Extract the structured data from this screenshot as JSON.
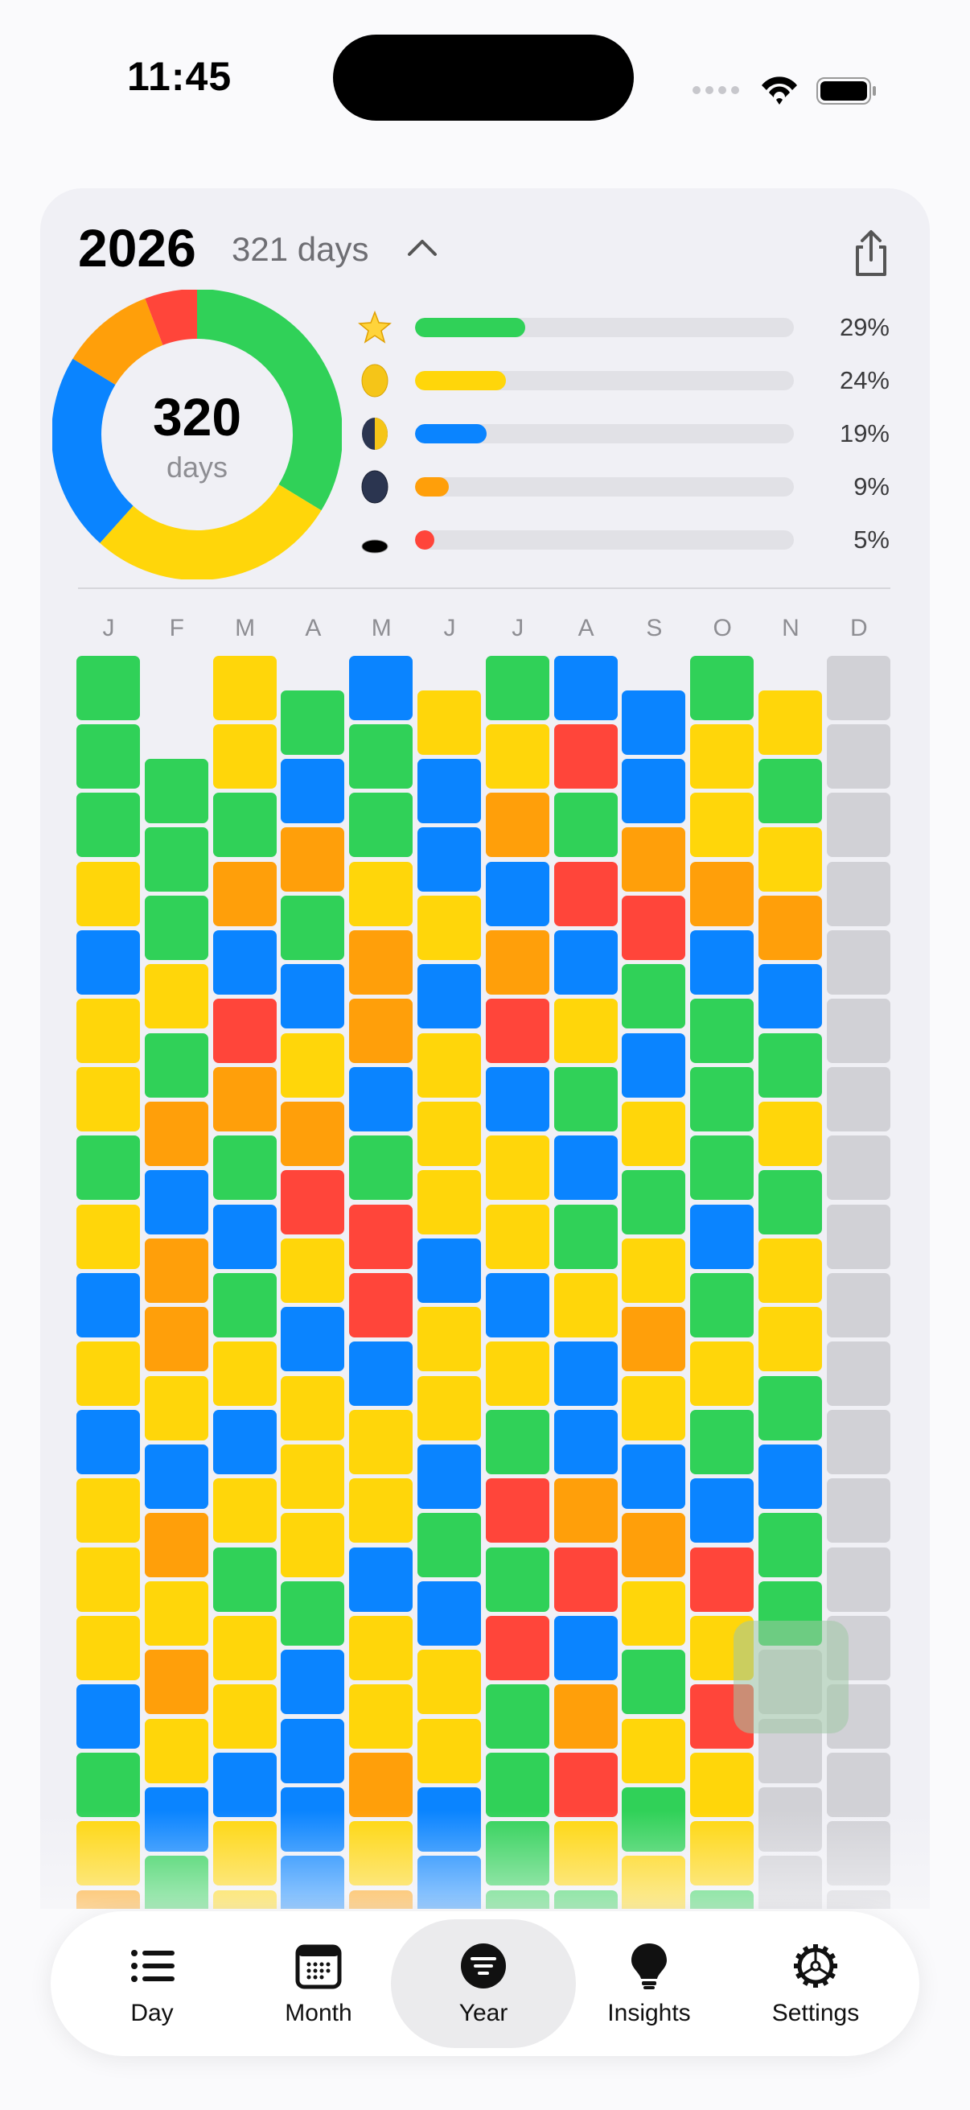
{
  "status_bar": {
    "time": "11:45",
    "signal_icon": "cellular-dots-icon",
    "wifi_icon": "wifi-icon",
    "battery_icon": "battery-icon"
  },
  "header": {
    "year": "2026",
    "days_count": "321 days",
    "collapse_icon": "chevron-up-icon",
    "share_icon": "share-icon"
  },
  "summary": {
    "total": "320",
    "total_label": "days"
  },
  "colors": {
    "G": "#30d158",
    "Y": "#ffd60a",
    "B": "#0a84ff",
    "O": "#ff9f0a",
    "R": "#ff453a",
    "X": "#d1d1d6"
  },
  "legend": [
    {
      "icon": "star-icon",
      "color": "#30d158",
      "percent": 29,
      "label": "29%"
    },
    {
      "icon": "full-moon-icon",
      "color": "#ffd60a",
      "percent": 24,
      "label": "24%"
    },
    {
      "icon": "first-quarter-moon-icon",
      "color": "#0a84ff",
      "percent": 19,
      "label": "19%"
    },
    {
      "icon": "new-moon-icon",
      "color": "#ff9f0a",
      "percent": 9,
      "label": "9%"
    },
    {
      "icon": "hole-icon",
      "color": "#ff453a",
      "percent": 5,
      "label": "5%"
    }
  ],
  "months": [
    {
      "label": "J",
      "days": "GGGYBYYGYBYBYYYBGYO"
    },
    {
      "label": "F",
      "days": "GGGYGOBOOYBOYOYBG"
    },
    {
      "label": "M",
      "days": "YYGOBROGBGYBYGYYBYY"
    },
    {
      "label": "A",
      "days": "GBOGBYORYBYYYGBBBB"
    },
    {
      "label": "M",
      "days": "BGGYOOBGRRBYYBYYOYO"
    },
    {
      "label": "J",
      "days": "YBBYBYYYBYYBGBYYBB"
    },
    {
      "label": "J",
      "days": "GYOBORBYYBYGRGRGGGG"
    },
    {
      "label": "A",
      "days": "BRGRBYGBGYBBORBORYG"
    },
    {
      "label": "S",
      "days": "BBORGBYGYOYBOYGYGY"
    },
    {
      "label": "O",
      "days": "GYYOBGGGBGYGBRYRYYG"
    },
    {
      "label": "N",
      "days": "YGYOBGYGYYGBGGXXXX"
    },
    {
      "label": "D",
      "days": "XXXXXXXXXXXXXXXXXXX"
    }
  ],
  "tabs": [
    {
      "label": "Day",
      "icon": "list-icon",
      "selected": false
    },
    {
      "label": "Month",
      "icon": "calendar-icon",
      "selected": false
    },
    {
      "label": "Year",
      "icon": "year-filter-icon",
      "selected": true
    },
    {
      "label": "Insights",
      "icon": "lightbulb-icon",
      "selected": false
    },
    {
      "label": "Settings",
      "icon": "gear-icon",
      "selected": false
    }
  ]
}
